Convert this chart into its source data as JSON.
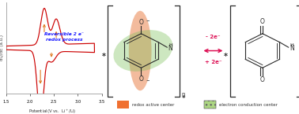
{
  "fig_width": 3.78,
  "fig_height": 1.45,
  "dpi": 100,
  "bg_color": "#ffffff",
  "left_panel": {
    "xlim": [
      1.5,
      3.5
    ],
    "ylabel": "dQ/dE (a.u.)",
    "xticks": [
      1.5,
      2.0,
      2.5,
      3.0,
      3.5
    ],
    "curve_color": "#cc0000",
    "arrow_color": "#e07820",
    "text_color": "#1a1aff",
    "ax_color": "#888888"
  },
  "right_colors": {
    "orange_ellipse": "#e8783c",
    "green_ellipse": "#7dc05a",
    "arrow_color": "#dd1155",
    "structure_color": "#2a2a2a",
    "legend_orange": "#f07030",
    "legend_green": "#80c040"
  }
}
